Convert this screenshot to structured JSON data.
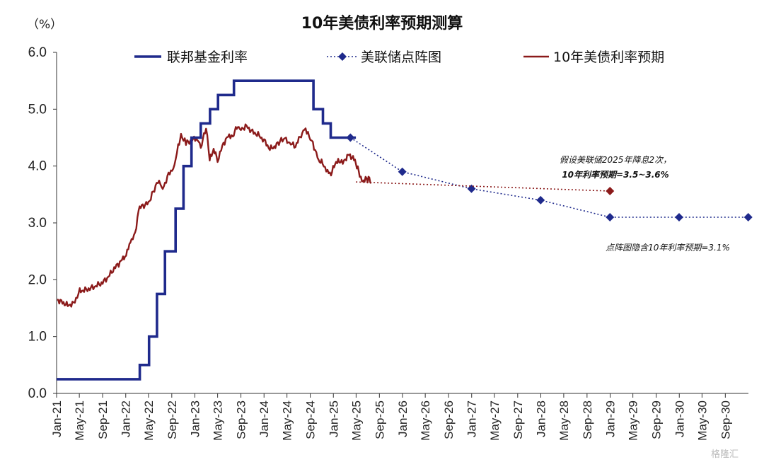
{
  "chart_data": {
    "type": "line",
    "title": "10年美债利率预期测算",
    "y_unit": "（%）",
    "ylim": [
      0,
      6
    ],
    "yticks": [
      "0.0",
      "1.0",
      "2.0",
      "3.0",
      "4.0",
      "5.0",
      "6.0"
    ],
    "x_tick_labels": [
      "Jan-21",
      "May-21",
      "Sep-21",
      "Jan-22",
      "May-22",
      "Sep-22",
      "Jan-23",
      "May-23",
      "Sep-23",
      "Jan-24",
      "May-24",
      "Sep-24",
      "Jan-25",
      "May-25",
      "Sep-25",
      "Jan-26",
      "May-26",
      "Sep-26",
      "Jan-27",
      "May-27",
      "Sep-27",
      "Jan-28",
      "May-28",
      "Sep-28",
      "Jan-29",
      "May-29",
      "Sep-29",
      "Jan-30",
      "May-30",
      "Sep-30"
    ],
    "grid": false,
    "legend_position": "top",
    "colors": {
      "fed_funds": "#1f2a8c",
      "dot_plot": "#1f2a8c",
      "ust10_forecast": "#8b1a1a",
      "ust10_actual": "#8b1a1a"
    },
    "series": [
      {
        "name": "联邦基金利率",
        "style": "solid-step",
        "points": [
          [
            "2021-01-01",
            0.25
          ],
          [
            "2022-03-16",
            0.5
          ],
          [
            "2022-05-04",
            1.0
          ],
          [
            "2022-06-15",
            1.75
          ],
          [
            "2022-07-27",
            2.5
          ],
          [
            "2022-09-21",
            3.25
          ],
          [
            "2022-11-02",
            4.0
          ],
          [
            "2022-12-14",
            4.5
          ],
          [
            "2023-02-01",
            4.75
          ],
          [
            "2023-03-22",
            5.0
          ],
          [
            "2023-05-03",
            5.25
          ],
          [
            "2023-07-26",
            5.5
          ],
          [
            "2024-09-18",
            5.0
          ],
          [
            "2024-11-07",
            4.75
          ],
          [
            "2024-12-18",
            4.5
          ],
          [
            "2025-04-30",
            4.5
          ]
        ]
      },
      {
        "name": "美联储点阵图",
        "style": "dotted-markers",
        "points": [
          [
            "2025-04-01",
            4.5
          ],
          [
            "2025-12-31",
            3.9
          ],
          [
            "2026-12-31",
            3.6
          ],
          [
            "2027-12-31",
            3.4
          ],
          [
            "2028-12-31",
            3.1
          ],
          [
            "2029-12-31",
            3.1
          ],
          [
            "2030-12-31",
            3.1
          ]
        ]
      },
      {
        "name": "10年美债利率预期",
        "style": "dotted-forecast",
        "points": [
          [
            "2025-04-30",
            3.72
          ],
          [
            "2028-12-31",
            3.56
          ]
        ]
      },
      {
        "name": "10年美债利率",
        "style": "solid",
        "points": [
          [
            "2021-01-04",
            1.65
          ],
          [
            "2021-02-01",
            1.6
          ],
          [
            "2021-03-01",
            1.55
          ],
          [
            "2021-04-01",
            1.58
          ],
          [
            "2021-05-03",
            1.8
          ],
          [
            "2021-06-01",
            1.82
          ],
          [
            "2021-07-01",
            1.85
          ],
          [
            "2021-08-02",
            1.9
          ],
          [
            "2021-09-01",
            1.95
          ],
          [
            "2021-10-01",
            2.05
          ],
          [
            "2021-11-01",
            2.2
          ],
          [
            "2021-12-01",
            2.3
          ],
          [
            "2022-01-03",
            2.45
          ],
          [
            "2022-02-01",
            2.7
          ],
          [
            "2022-02-20",
            2.8
          ],
          [
            "2022-03-10",
            3.25
          ],
          [
            "2022-04-01",
            3.3
          ],
          [
            "2022-05-01",
            3.35
          ],
          [
            "2022-06-01",
            3.6
          ],
          [
            "2022-06-20",
            3.75
          ],
          [
            "2022-07-15",
            3.6
          ],
          [
            "2022-08-15",
            3.85
          ],
          [
            "2022-09-15",
            4.0
          ],
          [
            "2022-10-05",
            4.35
          ],
          [
            "2022-10-20",
            4.55
          ],
          [
            "2022-11-15",
            4.4
          ],
          [
            "2022-12-15",
            4.45
          ],
          [
            "2023-01-15",
            4.5
          ],
          [
            "2023-02-01",
            4.3
          ],
          [
            "2023-03-01",
            4.7
          ],
          [
            "2023-03-20",
            4.1
          ],
          [
            "2023-04-10",
            4.3
          ],
          [
            "2023-05-01",
            4.1
          ],
          [
            "2023-06-01",
            4.4
          ],
          [
            "2023-07-01",
            4.55
          ],
          [
            "2023-07-20",
            4.5
          ],
          [
            "2023-08-10",
            4.7
          ],
          [
            "2023-09-01",
            4.65
          ],
          [
            "2023-10-01",
            4.7
          ],
          [
            "2023-11-01",
            4.6
          ],
          [
            "2023-12-01",
            4.55
          ],
          [
            "2024-01-01",
            4.45
          ],
          [
            "2024-02-01",
            4.3
          ],
          [
            "2024-03-01",
            4.35
          ],
          [
            "2024-04-01",
            4.45
          ],
          [
            "2024-04-20",
            4.5
          ],
          [
            "2024-05-15",
            4.4
          ],
          [
            "2024-06-15",
            4.35
          ],
          [
            "2024-07-15",
            4.55
          ],
          [
            "2024-08-01",
            4.65
          ],
          [
            "2024-08-20",
            4.55
          ],
          [
            "2024-09-15",
            4.4
          ],
          [
            "2024-10-15",
            4.1
          ],
          [
            "2024-11-05",
            4.05
          ],
          [
            "2024-12-01",
            3.9
          ],
          [
            "2024-12-20",
            3.85
          ],
          [
            "2025-01-10",
            4.05
          ],
          [
            "2025-02-01",
            4.1
          ],
          [
            "2025-02-20",
            4.05
          ],
          [
            "2025-03-10",
            4.15
          ],
          [
            "2025-03-25",
            4.2
          ],
          [
            "2025-04-10",
            4.15
          ],
          [
            "2025-04-25",
            4.1
          ],
          [
            "2025-05-10",
            3.95
          ],
          [
            "2025-05-20",
            3.85
          ],
          [
            "2025-06-01",
            3.75
          ],
          [
            "2025-06-10",
            3.7
          ],
          [
            "2025-06-20",
            3.82
          ],
          [
            "2025-07-01",
            3.73
          ],
          [
            "2025-07-10",
            3.8
          ],
          [
            "2025-07-20",
            3.7
          ]
        ]
      }
    ],
    "annotations": [
      {
        "lines": [
          "假设美联储2025年降息2次，",
          "10年利率预期=3.5~3.6%"
        ],
        "anchor": "above forecast end"
      },
      {
        "lines": [
          "点阵图隐含10年利率预期=3.1%"
        ],
        "anchor": "below dot plot"
      }
    ]
  },
  "watermark": "格隆汇"
}
